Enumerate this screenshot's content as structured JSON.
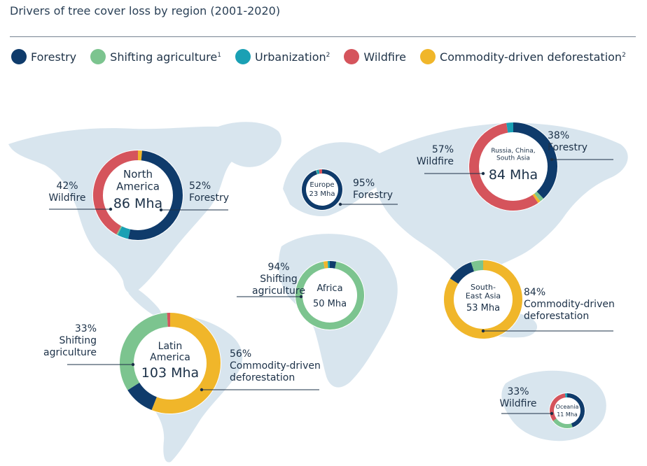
{
  "title": "Drivers of tree cover loss by region (2001-2020)",
  "legend": [
    {
      "label": "Forestry",
      "sup": "",
      "color": "#0f3b6b"
    },
    {
      "label": "Shifting agriculture",
      "sup": "1",
      "color": "#7cc48f"
    },
    {
      "label": "Urbanization",
      "sup": "2",
      "color": "#1aa0b4"
    },
    {
      "label": "Wildfire",
      "sup": "",
      "color": "#d5545c"
    },
    {
      "label": "Commodity-driven deforestation",
      "sup": "2",
      "color": "#f0b62a"
    }
  ],
  "chart_data": {
    "type": "pie",
    "variant": "donut-on-world-map",
    "title": "Drivers of tree cover loss by region (2001-2020)",
    "regions": [
      {
        "name_lines": [
          "North",
          "America"
        ],
        "total": "86 Mha",
        "slices": {
          "Forestry": 52,
          "Urbanization": 4,
          "Shifting agriculture": 0.5,
          "Wildfire": 42,
          "Commodity-driven deforestation": 1.5
        },
        "callouts": [
          {
            "pct": "42%",
            "lines": [
              "Wildfire"
            ]
          },
          {
            "pct": "52%",
            "lines": [
              "Forestry"
            ]
          }
        ]
      },
      {
        "name_lines": [
          "Europe"
        ],
        "total": "23 Mha",
        "slices": {
          "Forestry": 95,
          "Shifting agriculture": 0.5,
          "Urbanization": 2,
          "Wildfire": 2.5
        },
        "callouts": [
          {
            "pct": "95%",
            "lines": [
              "Forestry"
            ]
          }
        ]
      },
      {
        "name_lines": [
          "Russia, China,",
          "South Asia"
        ],
        "total": "84 Mha",
        "slices": {
          "Forestry": 38,
          "Shifting agriculture": 1.5,
          "Commodity-driven deforestation": 1,
          "Wildfire": 57,
          "Urbanization": 2.5
        },
        "callouts": [
          {
            "pct": "57%",
            "lines": [
              "Wildfire"
            ]
          },
          {
            "pct": "38%",
            "lines": [
              "Forestry"
            ]
          }
        ]
      },
      {
        "name_lines": [
          "Africa"
        ],
        "total": "50 Mha",
        "slices": {
          "Forestry": 3,
          "Shifting agriculture": 94,
          "Commodity-driven deforestation": 2,
          "Urbanization": 1
        },
        "callouts": [
          {
            "pct": "94%",
            "lines": [
              "Shifting",
              "agriculture"
            ]
          }
        ]
      },
      {
        "name_lines": [
          "South-",
          "East Asia"
        ],
        "total": "53 Mha",
        "slices": {
          "Commodity-driven deforestation": 84,
          "Forestry": 11,
          "Shifting agriculture": 5
        },
        "callouts": [
          {
            "pct": "84%",
            "lines": [
              "Commodity-driven",
              "deforestation"
            ]
          }
        ]
      },
      {
        "name_lines": [
          "Latin",
          "America"
        ],
        "total": "103 Mha",
        "slices": {
          "Commodity-driven deforestation": 56,
          "Forestry": 10,
          "Shifting agriculture": 33,
          "Wildfire": 1
        },
        "callouts": [
          {
            "pct": "33%",
            "lines": [
              "Shifting",
              "agriculture"
            ]
          },
          {
            "pct": "56%",
            "lines": [
              "Commodity-driven",
              "deforestation"
            ]
          }
        ]
      },
      {
        "name_lines": [
          "Oceania"
        ],
        "total": "11 Mha",
        "slices": {
          "Forestry": 45,
          "Shifting agriculture": 20,
          "Wildfire": 33,
          "Urbanization": 2
        },
        "callouts": [
          {
            "pct": "33%",
            "lines": [
              "Wildfire"
            ]
          }
        ]
      }
    ]
  }
}
